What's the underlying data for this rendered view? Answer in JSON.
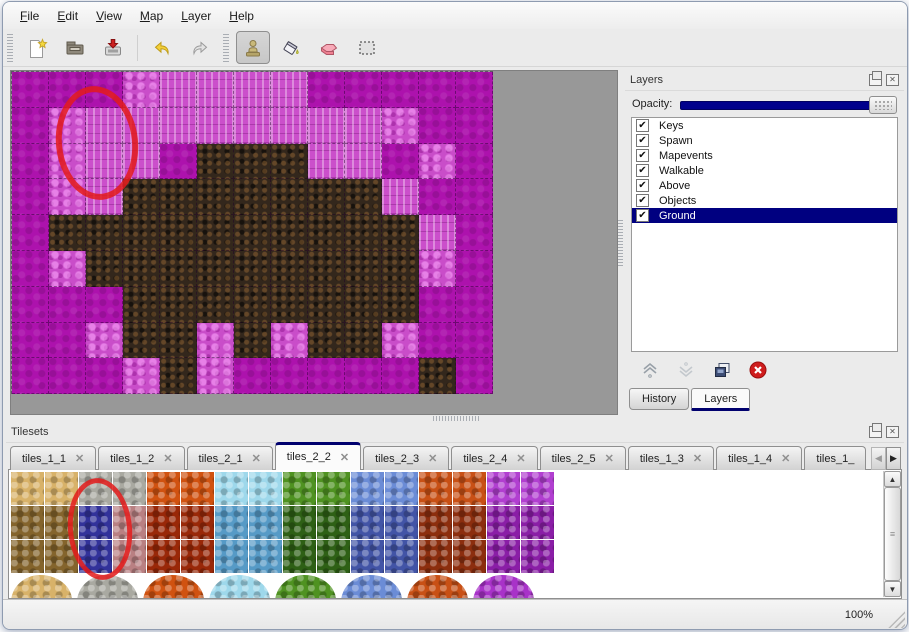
{
  "menubar": {
    "items": [
      {
        "label": "File"
      },
      {
        "label": "Edit"
      },
      {
        "label": "View"
      },
      {
        "label": "Map"
      },
      {
        "label": "Layer"
      },
      {
        "label": "Help"
      }
    ]
  },
  "toolbar": {
    "buttons": [
      {
        "name": "new-file",
        "group": 1
      },
      {
        "name": "open",
        "group": 1
      },
      {
        "name": "save",
        "group": 1
      },
      {
        "name": "undo",
        "group": 1
      },
      {
        "name": "redo",
        "group": 1
      },
      {
        "name": "stamp-tool",
        "group": 2,
        "active": true
      },
      {
        "name": "fill-tool",
        "group": 2
      },
      {
        "name": "eraser-tool",
        "group": 2
      },
      {
        "name": "rect-select-tool",
        "group": 2
      }
    ],
    "active_tool": "stamp-tool"
  },
  "map": {
    "tile_rows": [
      "PPPFWWWWPPPPP",
      "PFWWWWWWWWFPP",
      "PFWWPBBBWWPFP",
      "PFWBBBBBBBWPP",
      "PBBBBBBBBBBWP",
      "PFBBBBBBBBBFP",
      "PPPBBBBBBBBPP",
      "PPFBBFBFBBFPP",
      "PPPFBFPPPPPBP"
    ],
    "tile_legend": {
      "P": "plain-magenta",
      "F": "light-fluff",
      "W": "light-wall",
      "B": "dark-rock"
    },
    "annotations": [
      {
        "shape": "ellipse",
        "color": "#e31b1b",
        "target": "map-upper-left"
      },
      {
        "shape": "ellipse",
        "color": "#e31b1b",
        "target": "tileset-blue-tiles"
      }
    ]
  },
  "layers_panel": {
    "title": "Layers",
    "opacity_label": "Opacity:",
    "opacity_full": true,
    "layers": [
      {
        "name": "Keys",
        "checked": true
      },
      {
        "name": "Spawn",
        "checked": true
      },
      {
        "name": "Mapevents",
        "checked": true
      },
      {
        "name": "Walkable",
        "checked": true
      },
      {
        "name": "Above",
        "checked": true
      },
      {
        "name": "Objects",
        "checked": true
      },
      {
        "name": "Ground",
        "checked": true,
        "selected": true
      }
    ],
    "buttons": [
      "raise-layer",
      "lower-layer",
      "duplicate-layer",
      "delete-layer"
    ],
    "tabs": [
      {
        "label": "History"
      },
      {
        "label": "Layers",
        "active": true
      }
    ]
  },
  "tilesets_panel": {
    "title": "Tilesets",
    "tabs": [
      {
        "label": "tiles_1_1"
      },
      {
        "label": "tiles_1_2"
      },
      {
        "label": "tiles_2_1"
      },
      {
        "label": "tiles_2_2",
        "active": true
      },
      {
        "label": "tiles_2_3"
      },
      {
        "label": "tiles_2_4"
      },
      {
        "label": "tiles_2_5"
      },
      {
        "label": "tiles_1_3"
      },
      {
        "label": "tiles_1_4"
      },
      {
        "label": "tiles_1_",
        "truncated": true
      }
    ],
    "tile_rows": [
      [
        "sand",
        "sand",
        "rock",
        "rock",
        "lava",
        "lava",
        "ice",
        "ice",
        "vine",
        "vine",
        "cry",
        "cry",
        "rust",
        "rust",
        "pur",
        "pur"
      ],
      [
        "fur",
        "fur",
        "navy",
        "mauve",
        "dred",
        "dred",
        "dice",
        "dice",
        "dvine",
        "dvine",
        "dcry",
        "dcry",
        "drust",
        "drust",
        "dpur",
        "dpur"
      ],
      [
        "fur",
        "fur",
        "navy",
        "mauve",
        "dred",
        "dred",
        "dice",
        "dice",
        "dvine",
        "dvine",
        "dcry",
        "dcry",
        "drust",
        "drust",
        "dpur",
        "dpur"
      ]
    ],
    "blob_row": [
      "sand",
      "rock",
      "lava",
      "ice",
      "vine",
      "cry",
      "rust",
      "purB"
    ]
  },
  "icons": {
    "tab_close": "✕",
    "panel_close": "✕",
    "checkbox_check": "✔",
    "scroll_up": "▲",
    "scroll_down": "▼",
    "scroll_left": "◀",
    "scroll_right": "▶",
    "thumb_grip": "≡"
  },
  "colors": {
    "selection_navy": "#000080",
    "annotation_red": "#e31b1b",
    "map_canvas_gray": "#989898"
  },
  "statusbar": {
    "zoom": "100%"
  }
}
